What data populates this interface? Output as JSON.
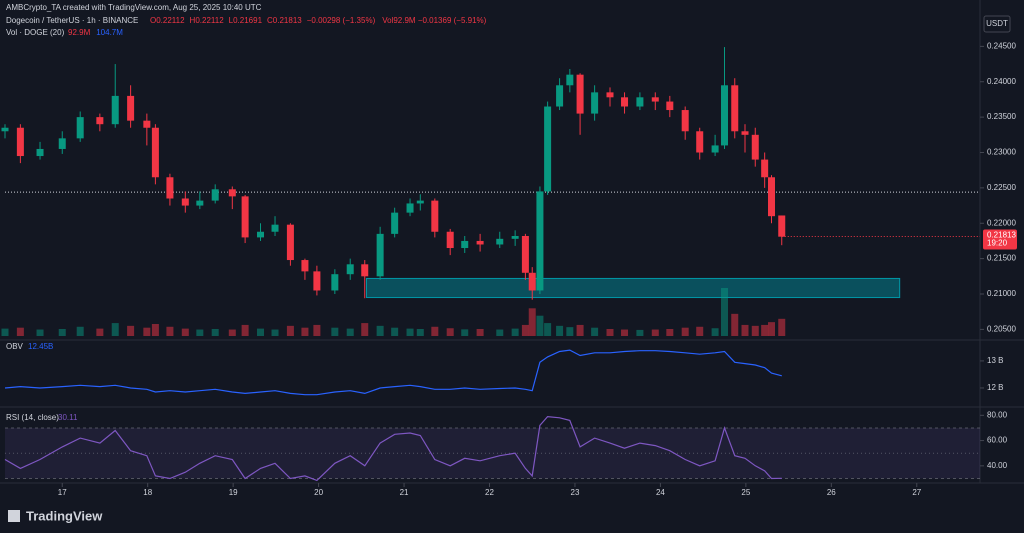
{
  "header": {
    "credit": "AMBCrypto_TA created with TradingView.com, Aug 25, 2025 10:40 UTC",
    "symbol": "Dogecoin / TetherUS · 1h · BINANCE",
    "ohlc": [
      "O0.22112",
      "H0.22112",
      "L0.21691",
      "C0.21813",
      "−0.00298 (−1.35%)"
    ],
    "vol_change": "Vol92.9M −0.01369 (−5.91%)",
    "vol_name": "Vol · DOGE (20)",
    "vol_values": [
      "92.9M",
      "104.7M"
    ],
    "obv_name": "OBV",
    "obv_value": "12.45B",
    "rsi_name": "RSI (14, close)",
    "rsi_value": "30.11",
    "currency": "USDT",
    "logo": "TradingView"
  },
  "chart_data": {
    "type": "candlestick",
    "up_color": "#089981",
    "down_color": "#f23645",
    "xlim": [
      16.33,
      27.74
    ],
    "xticks": [
      17,
      18,
      19,
      20,
      21,
      22,
      23,
      24,
      25,
      26,
      27
    ],
    "ylim": [
      0.2035,
      0.2459
    ],
    "yticks": [
      {
        "value": 0.245,
        "label": "0.24500"
      },
      {
        "value": 0.24,
        "label": "0.24000"
      },
      {
        "value": 0.235,
        "label": "0.23500"
      },
      {
        "value": 0.23,
        "label": "0.23000"
      },
      {
        "value": 0.225,
        "label": "0.22500"
      },
      {
        "value": 0.22,
        "label": "0.22000"
      },
      {
        "value": 0.215,
        "label": "0.21500"
      },
      {
        "value": 0.21,
        "label": "0.21000"
      },
      {
        "value": 0.205,
        "label": "0.20500"
      }
    ],
    "x": [
      16.33,
      16.51,
      16.74,
      17.0,
      17.21,
      17.44,
      17.62,
      17.8,
      17.99,
      18.09,
      18.26,
      18.44,
      18.61,
      18.79,
      18.99,
      19.14,
      19.32,
      19.49,
      19.67,
      19.84,
      19.98,
      20.19,
      20.37,
      20.54,
      20.72,
      20.89,
      21.07,
      21.19,
      21.36,
      21.54,
      21.71,
      21.89,
      22.12,
      22.3,
      22.42,
      22.5,
      22.59,
      22.68,
      22.82,
      22.94,
      23.06,
      23.23,
      23.41,
      23.58,
      23.76,
      23.94,
      24.11,
      24.29,
      24.46,
      24.64,
      24.75,
      24.87,
      24.99,
      25.11,
      25.22,
      25.3,
      25.42
    ],
    "open": [
      0.233,
      0.2335,
      0.2295,
      0.2305,
      0.232,
      0.235,
      0.234,
      0.238,
      0.2345,
      0.2335,
      0.2265,
      0.2235,
      0.2225,
      0.2232,
      0.2248,
      0.2238,
      0.218,
      0.2188,
      0.2198,
      0.2148,
      0.2132,
      0.2105,
      0.2128,
      0.2142,
      0.2125,
      0.2185,
      0.2215,
      0.2228,
      0.2232,
      0.2188,
      0.2165,
      0.2175,
      0.217,
      0.2178,
      0.2182,
      0.213,
      0.2105,
      0.2245,
      0.2365,
      0.2395,
      0.241,
      0.2355,
      0.2385,
      0.2378,
      0.2365,
      0.2378,
      0.2372,
      0.236,
      0.233,
      0.23,
      0.231,
      0.2395,
      0.233,
      0.2325,
      0.229,
      0.2265,
      0.2211
    ],
    "high": [
      0.234,
      0.234,
      0.2315,
      0.233,
      0.2358,
      0.2355,
      0.2425,
      0.2395,
      0.2355,
      0.234,
      0.227,
      0.2245,
      0.2245,
      0.2255,
      0.2252,
      0.224,
      0.22,
      0.221,
      0.22,
      0.215,
      0.214,
      0.2135,
      0.215,
      0.2148,
      0.2195,
      0.2222,
      0.2235,
      0.2241,
      0.2235,
      0.2192,
      0.2182,
      0.2185,
      0.2188,
      0.219,
      0.2185,
      0.2138,
      0.2252,
      0.2372,
      0.2405,
      0.2418,
      0.2412,
      0.2395,
      0.2392,
      0.2385,
      0.2385,
      0.2385,
      0.238,
      0.2365,
      0.2335,
      0.2325,
      0.2449,
      0.2405,
      0.234,
      0.2335,
      0.23,
      0.2268,
      0.2211
    ],
    "low": [
      0.232,
      0.2285,
      0.229,
      0.2298,
      0.2315,
      0.233,
      0.2335,
      0.2335,
      0.231,
      0.2255,
      0.2225,
      0.2215,
      0.222,
      0.2228,
      0.222,
      0.2172,
      0.2175,
      0.2182,
      0.214,
      0.212,
      0.2098,
      0.21,
      0.212,
      0.2094,
      0.212,
      0.218,
      0.221,
      0.2218,
      0.218,
      0.2155,
      0.2158,
      0.216,
      0.2165,
      0.2168,
      0.212,
      0.2092,
      0.21,
      0.224,
      0.236,
      0.2385,
      0.2325,
      0.2345,
      0.2365,
      0.2355,
      0.236,
      0.236,
      0.235,
      0.2318,
      0.229,
      0.2295,
      0.2305,
      0.232,
      0.23,
      0.228,
      0.225,
      0.22,
      0.2169
    ],
    "close": [
      0.2335,
      0.2295,
      0.2305,
      0.232,
      0.235,
      0.234,
      0.238,
      0.2345,
      0.2335,
      0.2265,
      0.2235,
      0.2225,
      0.2232,
      0.2248,
      0.2238,
      0.218,
      0.2188,
      0.2198,
      0.2148,
      0.2132,
      0.2105,
      0.2128,
      0.2142,
      0.2125,
      0.2185,
      0.2215,
      0.2228,
      0.2232,
      0.2188,
      0.2165,
      0.2175,
      0.217,
      0.2178,
      0.2182,
      0.213,
      0.2105,
      0.2245,
      0.2365,
      0.2395,
      0.241,
      0.2355,
      0.2385,
      0.2378,
      0.2365,
      0.2378,
      0.2372,
      0.236,
      0.233,
      0.23,
      0.231,
      0.2395,
      0.233,
      0.2325,
      0.229,
      0.2265,
      0.221,
      0.2181
    ],
    "volume": [
      40,
      45,
      35,
      38,
      50,
      40,
      70,
      55,
      45,
      65,
      50,
      40,
      35,
      38,
      35,
      60,
      40,
      35,
      55,
      45,
      60,
      45,
      40,
      70,
      55,
      45,
      40,
      38,
      50,
      42,
      36,
      38,
      35,
      40,
      60,
      150,
      110,
      70,
      55,
      48,
      60,
      45,
      38,
      35,
      33,
      35,
      38,
      45,
      50,
      42,
      260,
      120,
      60,
      55,
      60,
      75,
      93
    ],
    "support_zone": {
      "x": [
        20.56,
        26.8
      ],
      "y": [
        0.2095,
        0.2122
      ]
    },
    "dotted_level": 0.2244,
    "last_price": {
      "value": 0.21813,
      "label": "0.21813"
    },
    "countdown": "19:20",
    "obv": {
      "color": "#2962ff",
      "ylim": [
        11.37,
        13.7
      ],
      "yticks": [
        {
          "value": 13,
          "label": "13 B"
        },
        {
          "value": 12,
          "label": "12 B"
        }
      ],
      "values": [
        12.0,
        12.05,
        12.0,
        12.05,
        12.1,
        12.05,
        12.1,
        12.0,
        11.95,
        11.85,
        11.9,
        11.85,
        11.9,
        11.95,
        11.85,
        11.8,
        11.85,
        11.9,
        11.8,
        11.75,
        11.75,
        11.85,
        11.9,
        11.8,
        12.0,
        12.05,
        12.1,
        12.05,
        11.95,
        11.95,
        12.0,
        11.95,
        11.98,
        12.0,
        11.95,
        11.9,
        12.95,
        13.15,
        13.35,
        13.4,
        13.2,
        13.3,
        13.3,
        13.35,
        13.38,
        13.38,
        13.35,
        13.3,
        13.25,
        13.3,
        13.35,
        12.95,
        12.9,
        12.85,
        12.75,
        12.55,
        12.45
      ]
    },
    "rsi": {
      "color": "#7e57c2",
      "ylim": [
        28,
        85
      ],
      "levels": [
        70,
        50,
        30
      ],
      "yticks": [
        {
          "value": 80,
          "label": "80.00"
        },
        {
          "value": 60,
          "label": "60.00"
        },
        {
          "value": 40,
          "label": "40.00"
        }
      ],
      "values": [
        45,
        38,
        45,
        55,
        62,
        58,
        68,
        52,
        48,
        32,
        30,
        35,
        42,
        48,
        45,
        30,
        38,
        42,
        30,
        32,
        28.5,
        42,
        48,
        40,
        58,
        65,
        66,
        64,
        45,
        40,
        46,
        44,
        48,
        50,
        38,
        32,
        72,
        79,
        78,
        76,
        55,
        62,
        58,
        54,
        58,
        56,
        52,
        45,
        40,
        44,
        70,
        48,
        46,
        40,
        36,
        30,
        30.1
      ]
    }
  }
}
